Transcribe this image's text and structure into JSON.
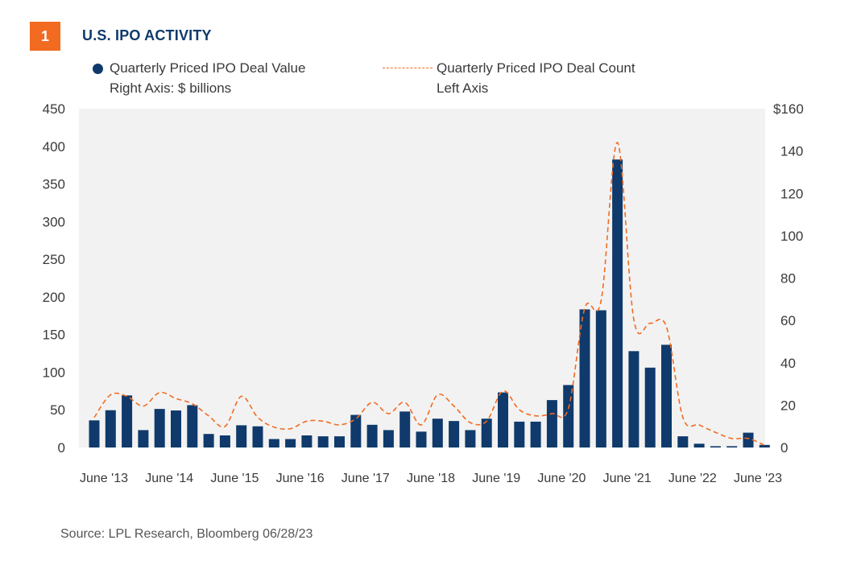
{
  "figure_number": "1",
  "title": "U.S. IPO ACTIVITY",
  "legend": {
    "value_line1": "Quarterly Priced IPO Deal Value",
    "value_line2": "Right Axis: $ billions",
    "count_line1": "Quarterly Priced IPO Deal Count",
    "count_line2": "Left Axis"
  },
  "source": "Source: LPL Research, Bloomberg  06/28/23",
  "colors": {
    "bar": "#0f3a6b",
    "line": "#f26b21",
    "plot_bg": "#f2f2f2",
    "title": "#0f3a6b"
  },
  "chart_data": {
    "type": "bar",
    "title": "U.S. IPO ACTIVITY",
    "x_tick_labels": [
      "June '13",
      "June '14",
      "June '15",
      "June '16",
      "June '17",
      "June '18",
      "June '19",
      "June '20",
      "June '21",
      "June '22",
      "June '23"
    ],
    "left_axis": {
      "label": "Quarterly Priced IPO Deal Count",
      "range": [
        0,
        450
      ],
      "ticks": [
        "450",
        "400",
        "350",
        "300",
        "250",
        "200",
        "150",
        "100",
        "50",
        "0"
      ]
    },
    "right_axis": {
      "label": "Quarterly Priced IPO Deal Value ($ billions)",
      "range": [
        0,
        160
      ],
      "ticks": [
        "$160",
        "140",
        "120",
        "100",
        "80",
        "60",
        "40",
        "20",
        "0"
      ]
    },
    "series": [
      {
        "name": "Quarterly Priced IPO Deal Value",
        "axis": "right",
        "type": "bar",
        "values": [
          12.8,
          17.6,
          24.6,
          8.2,
          18.2,
          17.5,
          20,
          6.4,
          5.7,
          10.5,
          10,
          4,
          4,
          5.7,
          5.3,
          5.3,
          15.4,
          10.7,
          8.2,
          17,
          7.5,
          13.6,
          12.5,
          8.2,
          13.6,
          26,
          12.2,
          12.2,
          22.4,
          29.5,
          65.2,
          64.8,
          136,
          45.5,
          37.7,
          48.5,
          5.3,
          1.8,
          0.6,
          0.6,
          7,
          1.2
        ]
      },
      {
        "name": "Quarterly Priced IPO Deal Count",
        "axis": "left",
        "type": "line",
        "values": [
          40,
          70,
          68,
          55,
          73,
          65,
          58,
          42,
          28,
          68,
          40,
          27,
          25,
          35,
          35,
          30,
          38,
          60,
          45,
          60,
          30,
          70,
          55,
          33,
          35,
          75,
          50,
          42,
          45,
          52,
          185,
          195,
          405,
          170,
          165,
          160,
          40,
          30,
          20,
          12,
          12,
          3
        ]
      }
    ]
  }
}
